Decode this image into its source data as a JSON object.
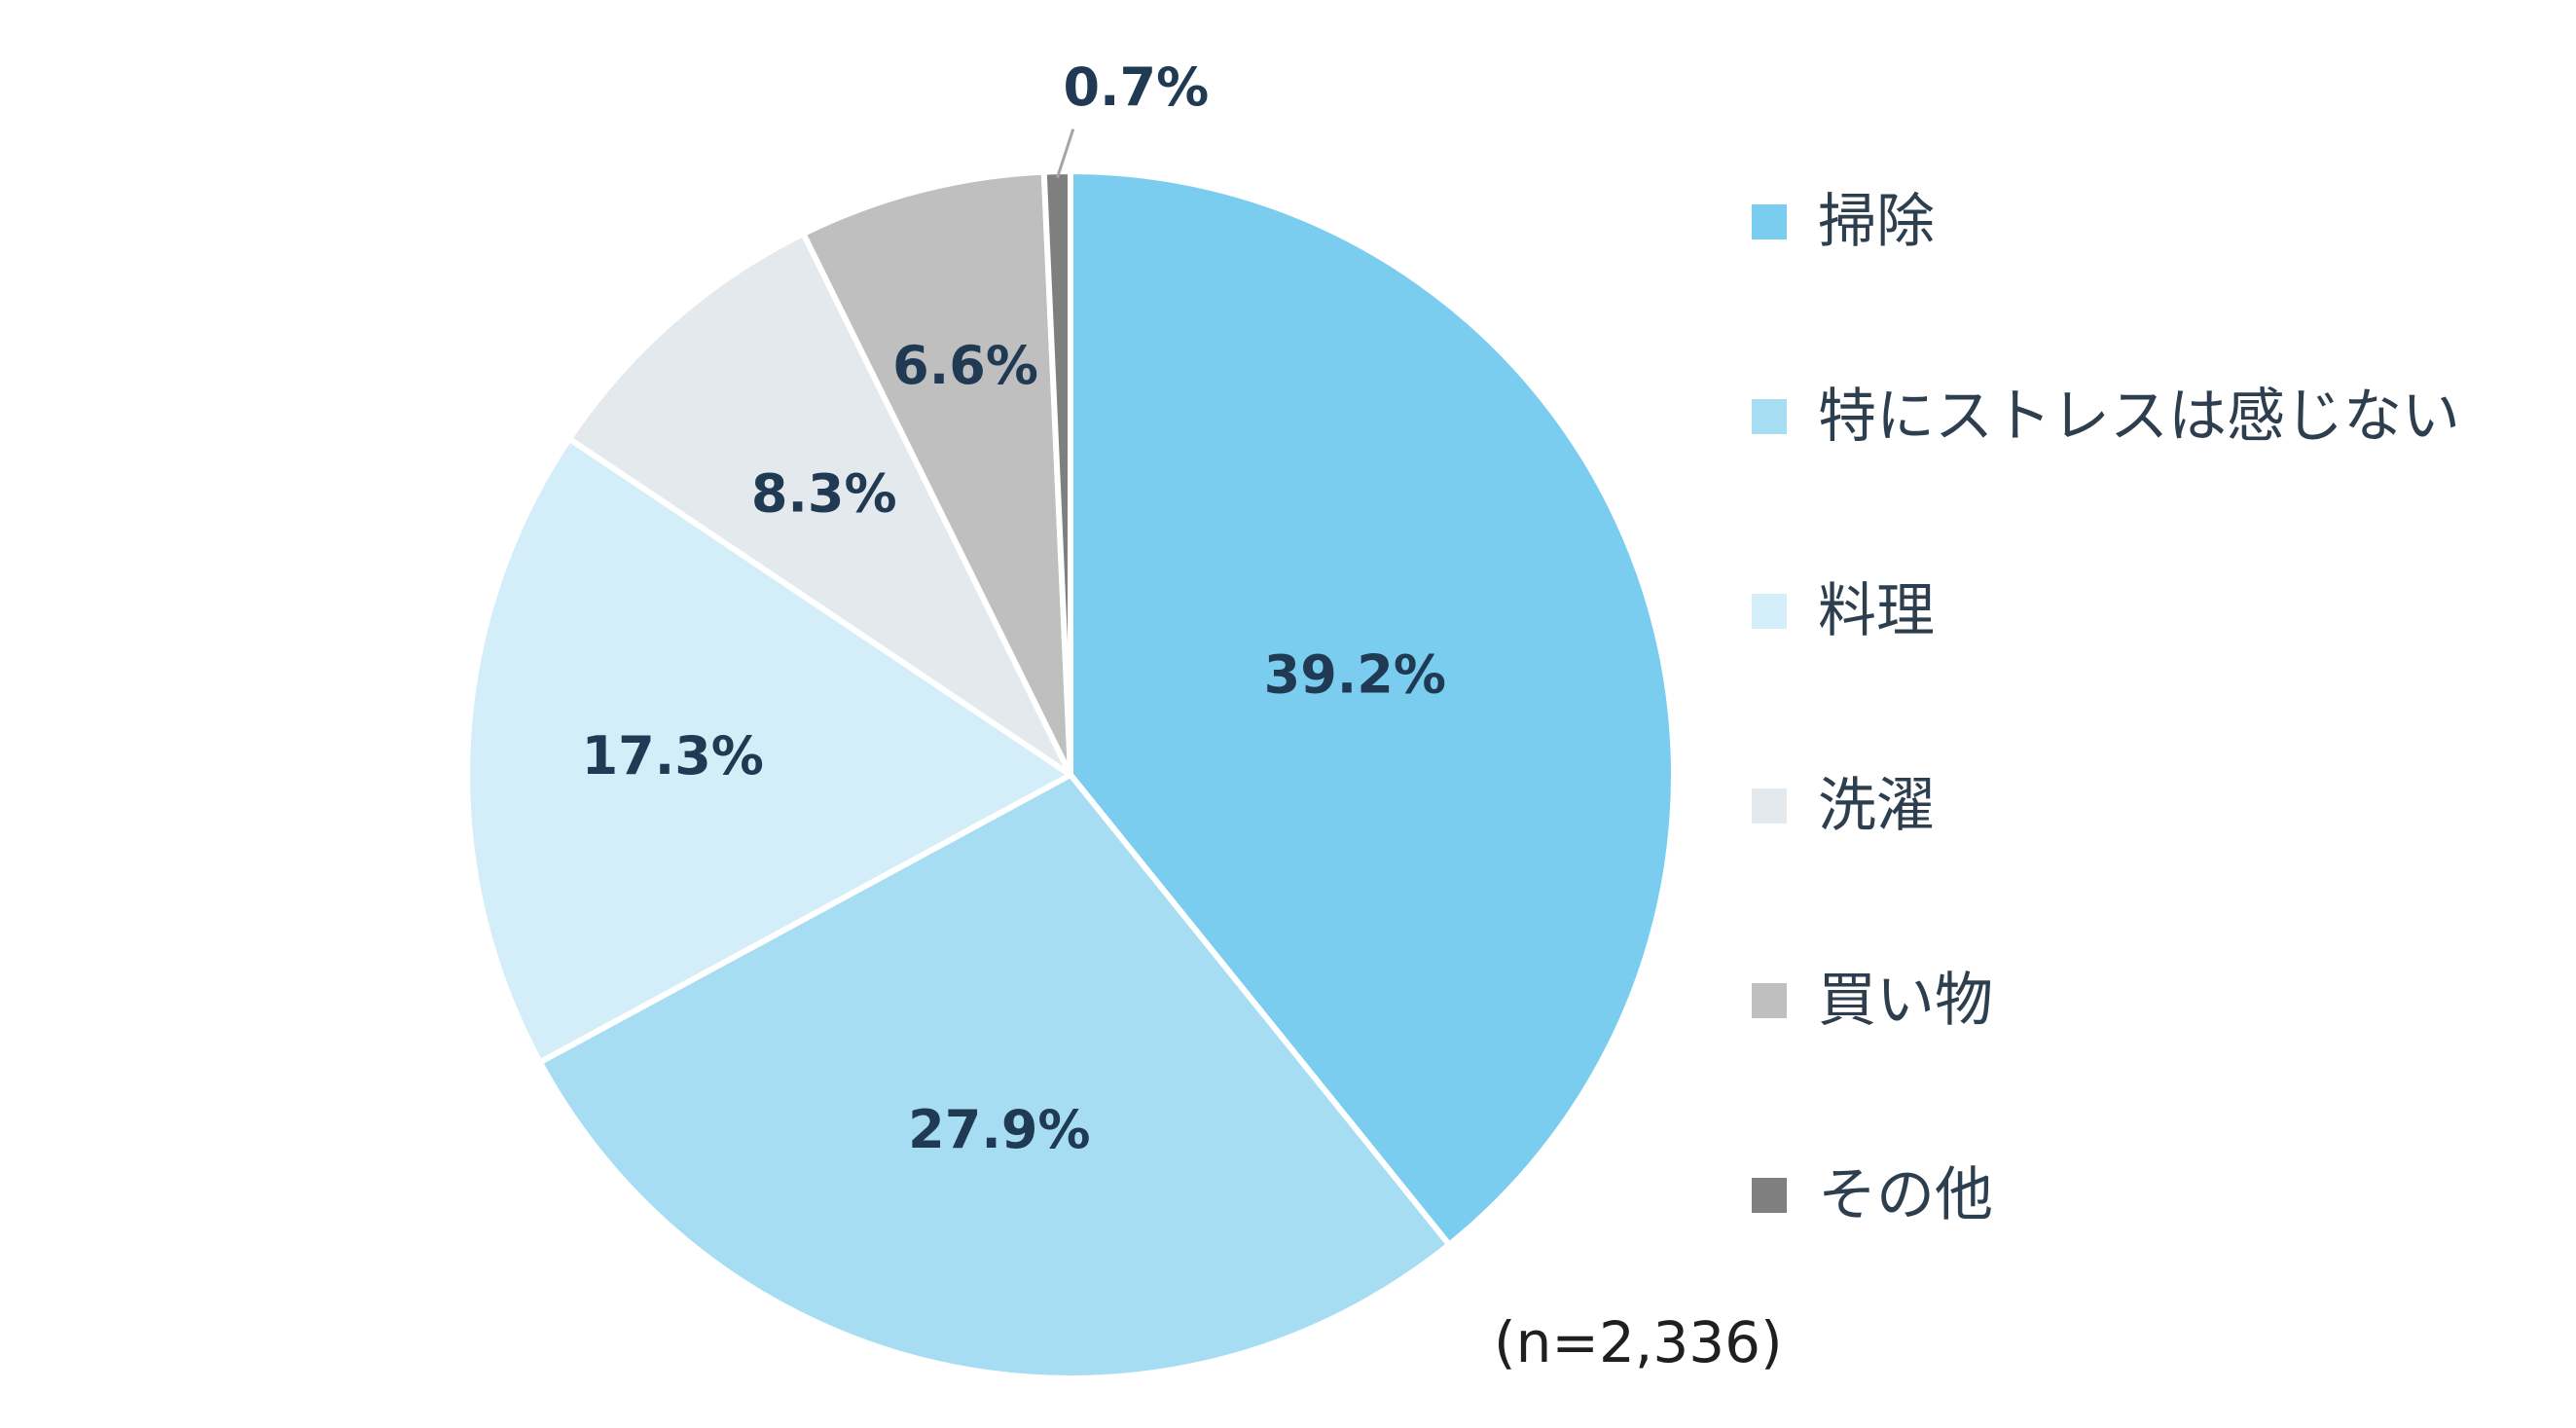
{
  "chart_data": {
    "type": "pie",
    "title": "",
    "start_angle_deg": 0,
    "direction": "clockwise",
    "categories": [
      "掃除",
      "特にストレスは感じない",
      "料理",
      "洗濯",
      "買い物",
      "その他"
    ],
    "values": [
      39.2,
      27.9,
      17.3,
      8.3,
      6.6,
      0.7
    ],
    "value_labels": [
      "39.2%",
      "27.9%",
      "17.3%",
      "8.3%",
      "6.6%",
      "0.7%"
    ],
    "colors": [
      "#7acdee",
      "#a6ddf3",
      "#d4eef9",
      "#e4e9ed",
      "#bfbfbf",
      "#7f7f7f"
    ],
    "label_color": "#1f3a52",
    "legend_position": "right",
    "note": "(n=2,336)"
  }
}
